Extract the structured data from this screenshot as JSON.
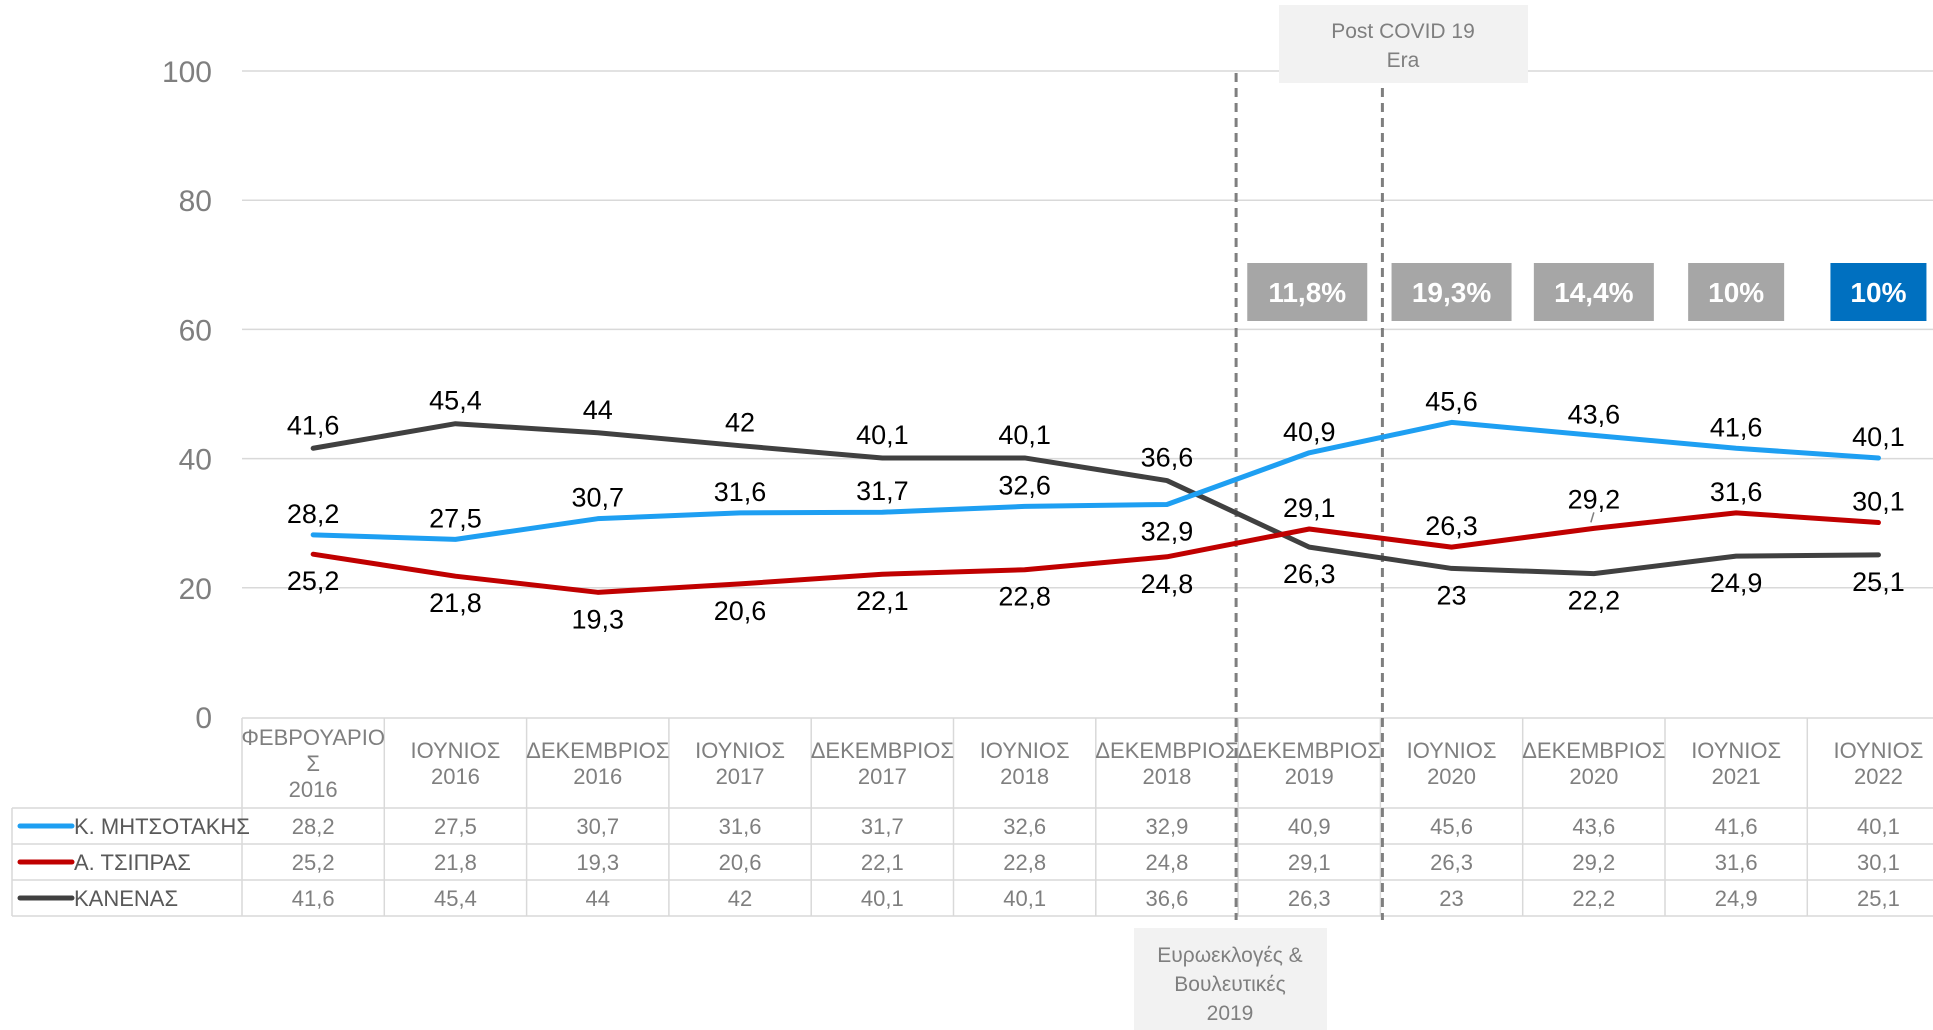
{
  "chart_data": {
    "type": "line",
    "categories": [
      [
        "ΦΕΒΡΟΥΑΡΙΟ",
        "Σ",
        "2016"
      ],
      [
        "ΙΟΥΝΙΟΣ",
        "2016"
      ],
      [
        "ΔΕΚΕΜΒΡΙΟΣ",
        "2016"
      ],
      [
        "ΙΟΥΝΙΟΣ",
        "2017"
      ],
      [
        "ΔΕΚΕΜΒΡΙΟΣ",
        "2017"
      ],
      [
        "ΙΟΥΝΙΟΣ",
        "2018"
      ],
      [
        "ΔΕΚΕΜΒΡΙΟΣ",
        "2018"
      ],
      [
        "ΔΕΚΕΜΒΡΙΟΣ",
        "2019"
      ],
      [
        "ΙΟΥΝΙΟΣ",
        "2020"
      ],
      [
        "ΔΕΚΕΜΒΡΙΟΣ",
        "2020"
      ],
      [
        "ΙΟΥΝΙΟΣ",
        "2021"
      ],
      [
        "ΙΟΥΝΙΟΣ",
        "2022"
      ]
    ],
    "series": [
      {
        "name": "Κ. ΜΗΤΣΟΤΑΚΗΣ",
        "color": "#1e9ff2",
        "values": [
          28.2,
          27.5,
          30.7,
          31.6,
          31.7,
          32.6,
          32.9,
          40.9,
          45.6,
          43.6,
          41.6,
          40.1
        ],
        "labels": [
          "28,2",
          "27,5",
          "30,7",
          "31,6",
          "31,7",
          "32,6",
          "32,9",
          "40,9",
          "45,6",
          "43,6",
          "41,6",
          "40,1"
        ]
      },
      {
        "name": "Α. ΤΣΙΠΡΑΣ",
        "color": "#c00000",
        "values": [
          25.2,
          21.8,
          19.3,
          20.6,
          22.1,
          22.8,
          24.8,
          29.1,
          26.3,
          29.2,
          31.6,
          30.1
        ],
        "labels": [
          "25,2",
          "21,8",
          "19,3",
          "20,6",
          "22,1",
          "22,8",
          "24,8",
          "29,1",
          "26,3",
          "29,2",
          "31,6",
          "30,1"
        ]
      },
      {
        "name": "ΚΑΝΕΝΑΣ",
        "color": "#404040",
        "values": [
          41.6,
          45.4,
          44,
          42,
          40.1,
          40.1,
          36.6,
          26.3,
          23,
          22.2,
          24.9,
          25.1
        ],
        "labels": [
          "41,6",
          "45,4",
          "44",
          "42",
          "40,1",
          "40,1",
          "36,6",
          "26,3",
          "23",
          "22,2",
          "24,9",
          "25,1"
        ]
      }
    ],
    "ylim": [
      0,
      100
    ],
    "yticks": [
      0,
      20,
      40,
      60,
      80,
      100
    ],
    "grid": true,
    "legend": "data-table-left",
    "gap_boxes": [
      {
        "text": "11,8%",
        "after_index": 7,
        "color": "#a6a6a6"
      },
      {
        "text": "19,3%",
        "after_index": 8,
        "color": "#a6a6a6"
      },
      {
        "text": "14,4%",
        "after_index": 9,
        "color": "#a6a6a6"
      },
      {
        "text": "10%",
        "after_index": 10,
        "color": "#a6a6a6"
      },
      {
        "text": "10%",
        "after_index": 11,
        "color": "#0070c0"
      }
    ],
    "annotations": [
      {
        "lines": [
          "Post  COVID 19",
          "Era"
        ],
        "position": "top"
      },
      {
        "lines": [
          "Ευρωεκλογές &",
          "Βουλευτικές",
          "2019"
        ],
        "position": "bottom"
      }
    ]
  }
}
